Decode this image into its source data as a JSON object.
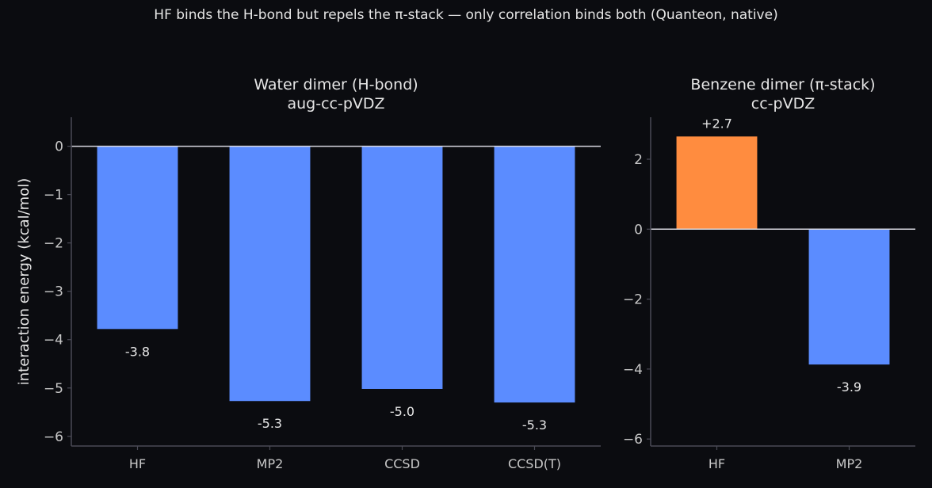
{
  "suptitle": "HF binds the H-bond but repels the π-stack — only correlation binds both  (Quanteon, native)",
  "colors": {
    "background": "#0b0c10",
    "correlated_bar": "#5b8cff",
    "hf_repulsive_bar": "#ff8c3f",
    "text": "#e6e6e6",
    "tick_text": "#c8c8c8",
    "spine": "#4a4a55",
    "zero_line": "#d8d8e0"
  },
  "chart_data": [
    {
      "type": "bar",
      "title": [
        "Water dimer (H-bond)",
        "aug-cc-pVDZ"
      ],
      "ylabel": "interaction energy (kcal/mol)",
      "categories": [
        "HF",
        "MP2",
        "CCSD",
        "CCSD(T)"
      ],
      "values": [
        -3.78,
        -5.27,
        -5.02,
        -5.3
      ],
      "value_labels": [
        "-3.8",
        "-5.3",
        "-5.0",
        "-5.3"
      ],
      "bar_colors": [
        "#5b8cff",
        "#5b8cff",
        "#5b8cff",
        "#5b8cff"
      ],
      "ylim": [
        -6.2,
        0.6
      ],
      "yticks": [
        0,
        -1,
        -2,
        -3,
        -4,
        -5,
        -6
      ],
      "ytick_labels": [
        "0",
        "−1",
        "−2",
        "−3",
        "−4",
        "−5",
        "−6"
      ],
      "grid": false
    },
    {
      "type": "bar",
      "title": [
        "Benzene dimer (π-stack)",
        "cc-pVDZ"
      ],
      "ylabel": "",
      "categories": [
        "HF",
        "MP2"
      ],
      "values": [
        2.65,
        -3.87
      ],
      "value_labels": [
        "+2.7",
        "-3.9"
      ],
      "bar_colors": [
        "#ff8c3f",
        "#5b8cff"
      ],
      "ylim": [
        -6.2,
        3.2
      ],
      "yticks": [
        2,
        0,
        -2,
        -4,
        -6
      ],
      "ytick_labels": [
        "2",
        "0",
        "−2",
        "−4",
        "−6"
      ],
      "grid": false
    }
  ]
}
